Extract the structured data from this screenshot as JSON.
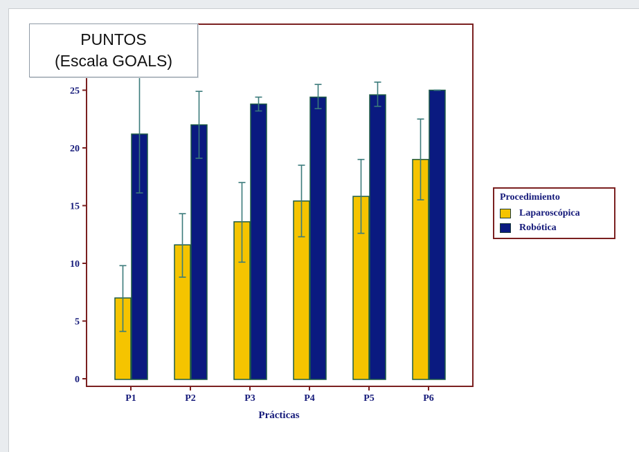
{
  "chart_data": {
    "type": "bar",
    "title": "PUNTOS",
    "subtitle": "(Escala GOALS)",
    "xlabel": "Prácticas",
    "ylabel": "",
    "categories": [
      "P1",
      "P2",
      "P3",
      "P4",
      "P5",
      "P6"
    ],
    "ylim": [
      0,
      27
    ],
    "yticks": [
      "0",
      "5",
      "10",
      "15",
      "20",
      "25"
    ],
    "legend": {
      "title": "Procedimiento",
      "placement": "right"
    },
    "series": [
      {
        "name": "Laparoscópica",
        "color": "#f5c400",
        "values": [
          7.0,
          11.6,
          13.6,
          15.4,
          15.8,
          19.0
        ],
        "err_low": [
          4.1,
          8.8,
          10.1,
          12.3,
          12.6,
          15.5
        ],
        "err_high": [
          9.8,
          14.3,
          17.0,
          18.5,
          19.0,
          22.5
        ]
      },
      {
        "name": "Robótica",
        "color": "#0a1a80",
        "values": [
          21.2,
          22.0,
          23.8,
          24.4,
          24.6,
          25.0
        ],
        "err_low": [
          16.1,
          19.1,
          23.2,
          23.4,
          23.6,
          25.0
        ],
        "err_high": [
          26.3,
          24.9,
          24.4,
          25.5,
          25.7,
          25.0
        ]
      }
    ],
    "grid": false
  },
  "colors": {
    "frame": "#7a1f1f",
    "axis_text": "#151a7a",
    "errorbar": "#3a7a7a",
    "bar_outline": "#1d5a45"
  }
}
